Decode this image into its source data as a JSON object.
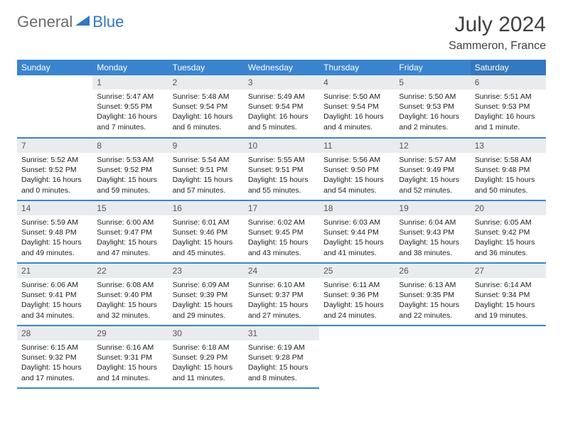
{
  "logo": {
    "text_general": "General",
    "text_blue": "Blue"
  },
  "title": "July 2024",
  "location": "Sammeron, France",
  "header_bg": "#3a84cf",
  "header_sat_bg": "#3478bd",
  "daynum_bg": "#e9ecef",
  "border_color": "#3a84cf",
  "days_of_week": [
    "Sunday",
    "Monday",
    "Tuesday",
    "Wednesday",
    "Thursday",
    "Friday",
    "Saturday"
  ],
  "weeks": [
    [
      null,
      {
        "n": "1",
        "sunrise": "Sunrise: 5:47 AM",
        "sunset": "Sunset: 9:55 PM",
        "d1": "Daylight: 16 hours",
        "d2": "and 7 minutes."
      },
      {
        "n": "2",
        "sunrise": "Sunrise: 5:48 AM",
        "sunset": "Sunset: 9:54 PM",
        "d1": "Daylight: 16 hours",
        "d2": "and 6 minutes."
      },
      {
        "n": "3",
        "sunrise": "Sunrise: 5:49 AM",
        "sunset": "Sunset: 9:54 PM",
        "d1": "Daylight: 16 hours",
        "d2": "and 5 minutes."
      },
      {
        "n": "4",
        "sunrise": "Sunrise: 5:50 AM",
        "sunset": "Sunset: 9:54 PM",
        "d1": "Daylight: 16 hours",
        "d2": "and 4 minutes."
      },
      {
        "n": "5",
        "sunrise": "Sunrise: 5:50 AM",
        "sunset": "Sunset: 9:53 PM",
        "d1": "Daylight: 16 hours",
        "d2": "and 2 minutes."
      },
      {
        "n": "6",
        "sunrise": "Sunrise: 5:51 AM",
        "sunset": "Sunset: 9:53 PM",
        "d1": "Daylight: 16 hours",
        "d2": "and 1 minute."
      }
    ],
    [
      {
        "n": "7",
        "sunrise": "Sunrise: 5:52 AM",
        "sunset": "Sunset: 9:52 PM",
        "d1": "Daylight: 16 hours",
        "d2": "and 0 minutes."
      },
      {
        "n": "8",
        "sunrise": "Sunrise: 5:53 AM",
        "sunset": "Sunset: 9:52 PM",
        "d1": "Daylight: 15 hours",
        "d2": "and 59 minutes."
      },
      {
        "n": "9",
        "sunrise": "Sunrise: 5:54 AM",
        "sunset": "Sunset: 9:51 PM",
        "d1": "Daylight: 15 hours",
        "d2": "and 57 minutes."
      },
      {
        "n": "10",
        "sunrise": "Sunrise: 5:55 AM",
        "sunset": "Sunset: 9:51 PM",
        "d1": "Daylight: 15 hours",
        "d2": "and 55 minutes."
      },
      {
        "n": "11",
        "sunrise": "Sunrise: 5:56 AM",
        "sunset": "Sunset: 9:50 PM",
        "d1": "Daylight: 15 hours",
        "d2": "and 54 minutes."
      },
      {
        "n": "12",
        "sunrise": "Sunrise: 5:57 AM",
        "sunset": "Sunset: 9:49 PM",
        "d1": "Daylight: 15 hours",
        "d2": "and 52 minutes."
      },
      {
        "n": "13",
        "sunrise": "Sunrise: 5:58 AM",
        "sunset": "Sunset: 9:48 PM",
        "d1": "Daylight: 15 hours",
        "d2": "and 50 minutes."
      }
    ],
    [
      {
        "n": "14",
        "sunrise": "Sunrise: 5:59 AM",
        "sunset": "Sunset: 9:48 PM",
        "d1": "Daylight: 15 hours",
        "d2": "and 49 minutes."
      },
      {
        "n": "15",
        "sunrise": "Sunrise: 6:00 AM",
        "sunset": "Sunset: 9:47 PM",
        "d1": "Daylight: 15 hours",
        "d2": "and 47 minutes."
      },
      {
        "n": "16",
        "sunrise": "Sunrise: 6:01 AM",
        "sunset": "Sunset: 9:46 PM",
        "d1": "Daylight: 15 hours",
        "d2": "and 45 minutes."
      },
      {
        "n": "17",
        "sunrise": "Sunrise: 6:02 AM",
        "sunset": "Sunset: 9:45 PM",
        "d1": "Daylight: 15 hours",
        "d2": "and 43 minutes."
      },
      {
        "n": "18",
        "sunrise": "Sunrise: 6:03 AM",
        "sunset": "Sunset: 9:44 PM",
        "d1": "Daylight: 15 hours",
        "d2": "and 41 minutes."
      },
      {
        "n": "19",
        "sunrise": "Sunrise: 6:04 AM",
        "sunset": "Sunset: 9:43 PM",
        "d1": "Daylight: 15 hours",
        "d2": "and 38 minutes."
      },
      {
        "n": "20",
        "sunrise": "Sunrise: 6:05 AM",
        "sunset": "Sunset: 9:42 PM",
        "d1": "Daylight: 15 hours",
        "d2": "and 36 minutes."
      }
    ],
    [
      {
        "n": "21",
        "sunrise": "Sunrise: 6:06 AM",
        "sunset": "Sunset: 9:41 PM",
        "d1": "Daylight: 15 hours",
        "d2": "and 34 minutes."
      },
      {
        "n": "22",
        "sunrise": "Sunrise: 6:08 AM",
        "sunset": "Sunset: 9:40 PM",
        "d1": "Daylight: 15 hours",
        "d2": "and 32 minutes."
      },
      {
        "n": "23",
        "sunrise": "Sunrise: 6:09 AM",
        "sunset": "Sunset: 9:39 PM",
        "d1": "Daylight: 15 hours",
        "d2": "and 29 minutes."
      },
      {
        "n": "24",
        "sunrise": "Sunrise: 6:10 AM",
        "sunset": "Sunset: 9:37 PM",
        "d1": "Daylight: 15 hours",
        "d2": "and 27 minutes."
      },
      {
        "n": "25",
        "sunrise": "Sunrise: 6:11 AM",
        "sunset": "Sunset: 9:36 PM",
        "d1": "Daylight: 15 hours",
        "d2": "and 24 minutes."
      },
      {
        "n": "26",
        "sunrise": "Sunrise: 6:13 AM",
        "sunset": "Sunset: 9:35 PM",
        "d1": "Daylight: 15 hours",
        "d2": "and 22 minutes."
      },
      {
        "n": "27",
        "sunrise": "Sunrise: 6:14 AM",
        "sunset": "Sunset: 9:34 PM",
        "d1": "Daylight: 15 hours",
        "d2": "and 19 minutes."
      }
    ],
    [
      {
        "n": "28",
        "sunrise": "Sunrise: 6:15 AM",
        "sunset": "Sunset: 9:32 PM",
        "d1": "Daylight: 15 hours",
        "d2": "and 17 minutes."
      },
      {
        "n": "29",
        "sunrise": "Sunrise: 6:16 AM",
        "sunset": "Sunset: 9:31 PM",
        "d1": "Daylight: 15 hours",
        "d2": "and 14 minutes."
      },
      {
        "n": "30",
        "sunrise": "Sunrise: 6:18 AM",
        "sunset": "Sunset: 9:29 PM",
        "d1": "Daylight: 15 hours",
        "d2": "and 11 minutes."
      },
      {
        "n": "31",
        "sunrise": "Sunrise: 6:19 AM",
        "sunset": "Sunset: 9:28 PM",
        "d1": "Daylight: 15 hours",
        "d2": "and 8 minutes."
      },
      null,
      null,
      null
    ]
  ]
}
